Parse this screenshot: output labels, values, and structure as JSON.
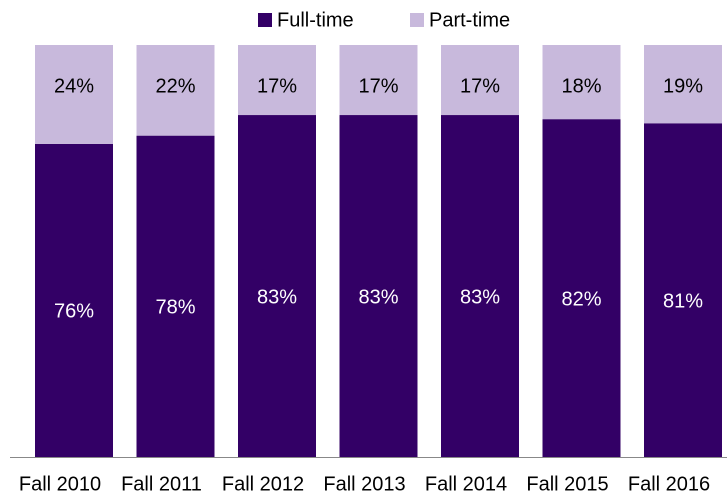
{
  "chart_data": {
    "type": "stacked_bar",
    "categories": [
      "Fall 2010",
      "Fall 2011",
      "Fall 2012",
      "Fall 2013",
      "Fall 2014",
      "Fall 2015",
      "Fall 2016"
    ],
    "series": [
      {
        "name": "Full-time",
        "color": "#330066",
        "values": [
          76,
          78,
          83,
          83,
          83,
          82,
          81
        ],
        "value_labels": [
          "76%",
          "78%",
          "83%",
          "83%",
          "83%",
          "82%",
          "81%"
        ]
      },
      {
        "name": "Part-time",
        "color": "#c8b9dc",
        "values": [
          24,
          22,
          17,
          17,
          17,
          18,
          19
        ],
        "value_labels": [
          "24%",
          "22%",
          "17%",
          "17%",
          "17%",
          "18%",
          "19%"
        ]
      }
    ],
    "ylim": [
      0,
      100
    ]
  }
}
